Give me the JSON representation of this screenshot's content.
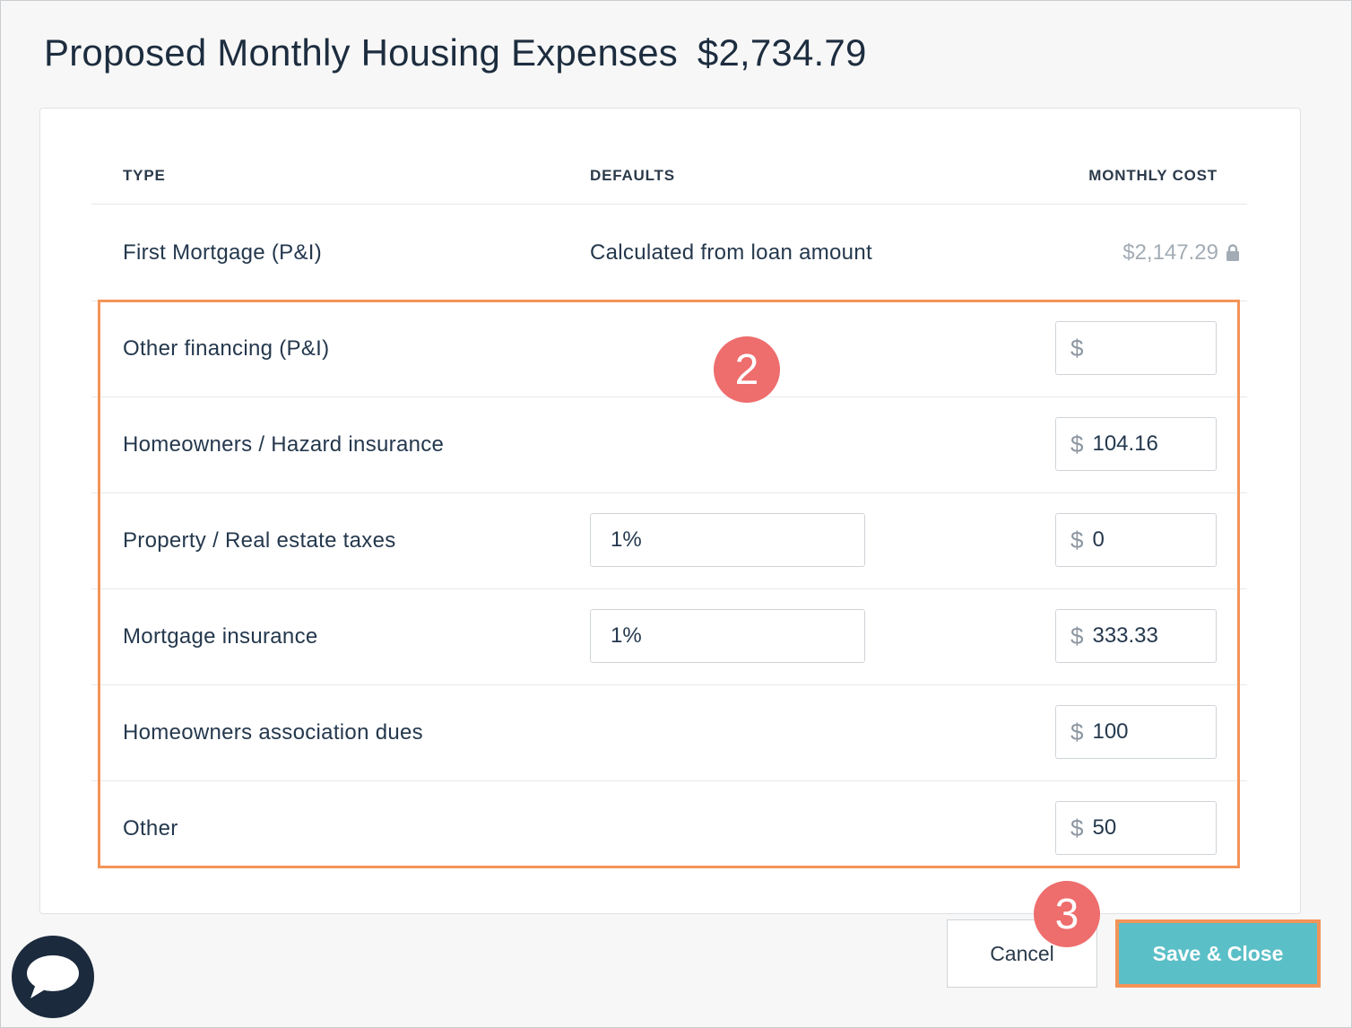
{
  "dialog": {
    "title": "Proposed Monthly Housing Expenses",
    "total": "$2,734.79"
  },
  "table": {
    "headers": {
      "type": "TYPE",
      "defaults": "DEFAULTS",
      "monthly_cost": "MONTHLY COST"
    },
    "first_mortgage": {
      "type": "First Mortgage (P&I)",
      "defaults": "Calculated from loan amount",
      "monthly_cost": "$2,147.29",
      "lock_icon": "lock-icon"
    },
    "rows": [
      {
        "type": "Other financing (P&I)",
        "default": "",
        "currency": "$",
        "value": ""
      },
      {
        "type": "Homeowners / Hazard insurance",
        "default": "",
        "currency": "$",
        "value": "104.16"
      },
      {
        "type": "Property / Real estate taxes",
        "default": "1%",
        "currency": "$",
        "value": "0"
      },
      {
        "type": "Mortgage insurance",
        "default": "1%",
        "currency": "$",
        "value": "333.33"
      },
      {
        "type": "Homeowners association dues",
        "default": "",
        "currency": "$",
        "value": "100"
      },
      {
        "type": "Other",
        "default": "",
        "currency": "$",
        "value": "50"
      }
    ]
  },
  "annotations": {
    "badge_2": "2",
    "badge_3": "3",
    "highlight_color": "#f39459",
    "badge_color": "#ee6d6d"
  },
  "footer": {
    "cancel_label": "Cancel",
    "save_label": "Save & Close",
    "save_color": "#5bbfc7"
  },
  "chat": {
    "icon": "chat-bubble-icon"
  }
}
